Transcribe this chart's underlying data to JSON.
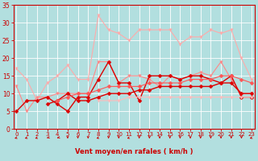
{
  "title": "",
  "xlabel": "Vent moyen/en rafales ( km/h )",
  "background_color": "#b2dfdf",
  "grid_color": "#c8e8e8",
  "text_color": "#cc0000",
  "x_values": [
    0,
    1,
    2,
    3,
    4,
    5,
    6,
    7,
    8,
    9,
    10,
    11,
    12,
    13,
    14,
    15,
    16,
    17,
    18,
    19,
    20,
    21,
    22,
    23
  ],
  "series": [
    {
      "color": "#ffaaaa",
      "marker": "v",
      "markersize": 2.5,
      "linewidth": 0.8,
      "data": [
        17,
        14,
        8,
        13,
        15,
        18,
        14,
        14,
        32,
        28,
        27,
        25,
        28,
        28,
        28,
        28,
        24,
        26,
        26,
        28,
        27,
        28,
        20,
        14
      ]
    },
    {
      "color": "#ff8888",
      "marker": "v",
      "markersize": 2.5,
      "linewidth": 0.8,
      "data": [
        12,
        5,
        9,
        9,
        10,
        10,
        10,
        10,
        19,
        19,
        13,
        15,
        15,
        14,
        12,
        15,
        14,
        15,
        16,
        15,
        19,
        14,
        10,
        10
      ]
    },
    {
      "color": "#dd0000",
      "marker": "D",
      "markersize": 2.5,
      "linewidth": 1.0,
      "data": [
        5,
        8,
        8,
        9,
        7,
        5,
        9,
        9,
        14,
        19,
        13,
        13,
        8,
        15,
        15,
        15,
        14,
        15,
        15,
        14,
        13,
        15,
        9,
        9
      ]
    },
    {
      "color": "#dd0000",
      "marker": "D",
      "markersize": 2.5,
      "linewidth": 1.0,
      "data": [
        null,
        null,
        null,
        7,
        8,
        10,
        8,
        8,
        9,
        10,
        10,
        10,
        11,
        11,
        12,
        12,
        12,
        12,
        12,
        12,
        13,
        13,
        10,
        10
      ]
    },
    {
      "color": "#ff5555",
      "marker": "D",
      "markersize": 2.5,
      "linewidth": 0.8,
      "data": [
        null,
        null,
        null,
        null,
        8,
        9,
        10,
        10,
        11,
        12,
        12,
        12,
        12,
        13,
        13,
        13,
        13,
        14,
        14,
        14,
        15,
        15,
        14,
        13
      ]
    },
    {
      "color": "#ffbbbb",
      "marker": "v",
      "markersize": 2.5,
      "linewidth": 0.8,
      "data": [
        null,
        null,
        null,
        null,
        null,
        null,
        null,
        null,
        8,
        8,
        8,
        9,
        9,
        9,
        9,
        9,
        9,
        9,
        9,
        9,
        9,
        9,
        9,
        9
      ]
    }
  ],
  "ylim": [
    0,
    35
  ],
  "xlim": [
    -0.3,
    23.3
  ],
  "yticks": [
    0,
    5,
    10,
    15,
    20,
    25,
    30,
    35
  ],
  "xticks": [
    0,
    1,
    2,
    3,
    4,
    5,
    6,
    7,
    8,
    9,
    10,
    11,
    12,
    13,
    14,
    15,
    16,
    17,
    18,
    19,
    20,
    21,
    22,
    23
  ],
  "figsize": [
    3.2,
    2.0
  ],
  "dpi": 100,
  "arrow_angles": [
    225,
    225,
    225,
    210,
    210,
    270,
    270,
    270,
    225,
    270,
    270,
    225,
    270,
    270,
    270,
    270,
    270,
    270,
    270,
    270,
    270,
    270,
    270,
    225
  ]
}
